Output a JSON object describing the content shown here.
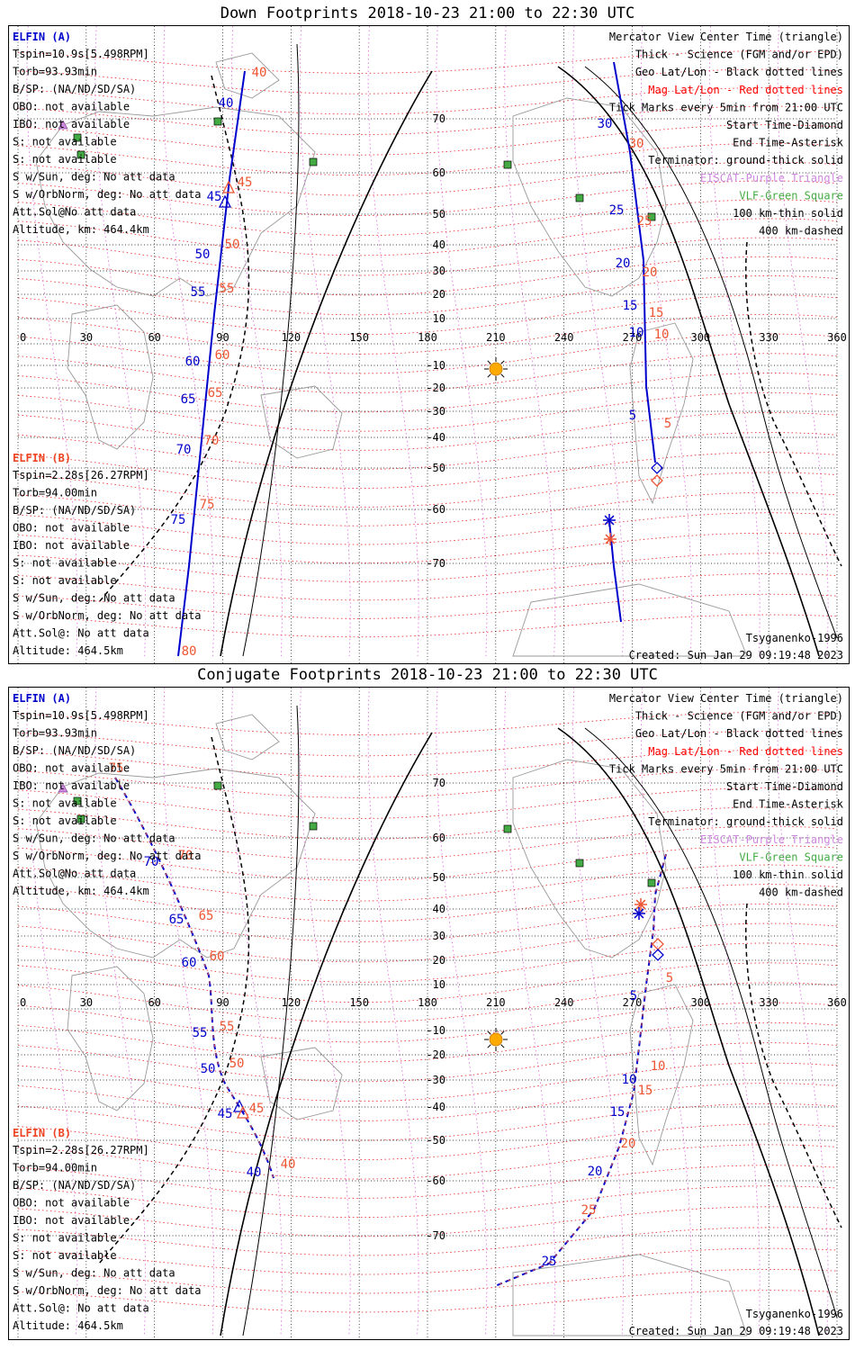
{
  "chart_data": [
    {
      "type": "map",
      "title": "Down Footprints 2018-10-23 21:00 to 22:30 UTC",
      "projection": "Mercator",
      "x_ticks": [
        "0",
        "30",
        "60",
        "90",
        "120",
        "150",
        "180",
        "210",
        "240",
        "270",
        "300",
        "330",
        "360"
      ],
      "y_ticks": [
        "70",
        "60",
        "50",
        "40",
        "30",
        "20",
        "10",
        "-10",
        "-20",
        "-30",
        "-40",
        "-50",
        "-60",
        "-70"
      ],
      "elfin_a": {
        "header": "ELFIN (A)",
        "lines": [
          "Tspin=10.9s[5.498RPM]",
          "Torb=93.93min",
          "B/SP: (NA/ND/SD/SA)",
          "OBO: not available",
          "IBO: not available",
          "S: not available",
          "S: not available",
          "S w/Sun, deg: No att data",
          "S w/OrbNorm, deg: No att data",
          "Att.Sol@No att data",
          "Altitude, km: 464.4km"
        ]
      },
      "elfin_b": {
        "header": "ELFIN (B)",
        "lines": [
          "Tspin=2.28s[26.27RPM]",
          "Torb=94.00min",
          "B/SP: (NA/ND/SD/SA)",
          "OBO: not available",
          "IBO: not available",
          "S: not available",
          "S: not available",
          "S w/Sun, deg: No att data",
          "S w/OrbNorm, deg: No att data",
          "Att.Sol@: No att data",
          "Altitude: 464.5km"
        ]
      },
      "legend": [
        {
          "text": "Mercator View Center Time (triangle)",
          "color": "#000000"
        },
        {
          "text": "Thick - Science (FGM and/or EPD)",
          "color": "#000000"
        },
        {
          "text": "Geo Lat/Lon - Black dotted lines",
          "color": "#000000"
        },
        {
          "text": "Mag Lat/Lon - Red dotted lines",
          "color": "#ff0000"
        },
        {
          "text": "Tick Marks every 5min from 21:00 UTC",
          "color": "#000000"
        },
        {
          "text": "Start Time-Diamond",
          "color": "#000000"
        },
        {
          "text": "End Time-Asterisk",
          "color": "#000000"
        },
        {
          "text": "Terminator: ground-thick solid",
          "color": "#000000"
        },
        {
          "text": "EISCAT-Purple Triangle",
          "color": "#cc88dd"
        },
        {
          "text": "VLF-Green Square",
          "color": "#44aa44"
        },
        {
          "text": "100 km-thin solid",
          "color": "#000000"
        },
        {
          "text": "400 km-dashed",
          "color": "#000000"
        }
      ],
      "footer_model": "Tsyganenko-1996",
      "footer_created": "Created: Sun Jan 29 09:19:48 2023",
      "series": [
        {
          "name": "ELFIN (A)",
          "color": "#0000cc",
          "style": "solid",
          "points": [
            [
              84,
              78
            ],
            [
              82,
              70
            ],
            [
              79,
              63
            ],
            [
              77,
              55
            ],
            [
              76,
              45
            ],
            [
              75,
              38
            ],
            [
              73,
              28
            ],
            [
              71,
              18
            ],
            [
              70,
              8
            ],
            [
              68,
              -5
            ],
            [
              66,
              -18
            ],
            [
              64,
              -30
            ],
            [
              62,
              -45
            ],
            [
              59,
              -58
            ],
            [
              55,
              -70
            ]
          ],
          "tick_labels": [
            "80",
            "75",
            "70",
            "65",
            "60",
            "55",
            "50",
            "45",
            "40"
          ]
        },
        {
          "name": "ELFIN (B)",
          "color": "#ff4422",
          "style": "dashed",
          "points": [
            [
              103,
              80
            ],
            [
              100,
              72
            ],
            [
              97,
              62
            ],
            [
              94,
              52
            ],
            [
              91,
              42
            ],
            [
              87,
              30
            ],
            [
              83,
              18
            ],
            [
              79,
              5
            ],
            [
              75,
              -8
            ],
            [
              70,
              -20
            ],
            [
              64,
              -32
            ],
            [
              57,
              -42
            ],
            [
              49,
              -52
            ],
            [
              40,
              -60
            ],
            [
              30,
              -66
            ]
          ],
          "tick_labels": [
            "40",
            "45",
            "50",
            "55",
            "60",
            "65",
            "70",
            "75",
            "80"
          ]
        },
        {
          "name": "ELFIN (A) south",
          "color": "#0000cc",
          "style": "solid",
          "points": [
            [
              273,
              -72
            ],
            [
              271,
              -62
            ],
            [
              268,
              -50
            ],
            [
              266,
              -40
            ],
            [
              264,
              -30
            ],
            [
              263,
              -20
            ],
            [
              265,
              -10
            ],
            [
              266,
              0
            ],
            [
              265,
              10
            ],
            [
              264,
              20
            ],
            [
              262,
              30
            ],
            [
              260,
              40
            ],
            [
              258,
              50
            ],
            [
              256,
              60
            ],
            [
              254,
              70
            ],
            [
              252,
              80
            ]
          ],
          "tick_labels": [
            "5",
            "10",
            "15",
            "20",
            "25",
            "30"
          ]
        }
      ],
      "tick_values": {
        "a": [
          "80",
          "75",
          "70",
          "65",
          "60",
          "55",
          "50",
          "45",
          "40"
        ],
        "b": [
          "40",
          "45",
          "50",
          "55",
          "60",
          "65",
          "70",
          "75",
          "80"
        ],
        "a2": [
          "5",
          "10",
          "15",
          "20",
          "25",
          "30"
        ],
        "b2": [
          "5",
          "10",
          "15",
          "20",
          "25",
          "30"
        ]
      }
    },
    {
      "type": "map",
      "title": "Conjugate Footprints 2018-10-23 21:00 to 22:30 UTC",
      "projection": "Mercator",
      "x_ticks": [
        "0",
        "30",
        "60",
        "90",
        "120",
        "150",
        "180",
        "210",
        "240",
        "270",
        "300",
        "330",
        "360"
      ],
      "y_ticks": [
        "70",
        "60",
        "50",
        "40",
        "30",
        "20",
        "10",
        "-10",
        "-20",
        "-30",
        "-40",
        "-50",
        "-60",
        "-70"
      ],
      "elfin_a": {
        "header": "ELFIN (A)",
        "lines": [
          "Tspin=10.9s[5.498RPM]",
          "Torb=93.93min",
          "B/SP: (NA/ND/SD/SA)",
          "OBO: not available",
          "IBO: not available",
          "S: not available",
          "S: not available",
          "S w/Sun, deg: No att data",
          "S w/OrbNorm, deg: No att data",
          "Att.Sol@No att data",
          "Altitude, km: 464.4km"
        ]
      },
      "elfin_b": {
        "header": "ELFIN (B)",
        "lines": [
          "Tspin=2.28s[26.27RPM]",
          "Torb=94.00min",
          "B/SP: (NA/ND/SD/SA)",
          "OBO: not available",
          "IBO: not available",
          "S: not available",
          "S: not available",
          "S w/Sun, deg: No att data",
          "S w/OrbNorm, deg: No att data",
          "Att.Sol@: No att data",
          "Altitude: 464.5km"
        ]
      },
      "legend": [
        {
          "text": "Mercator View Center Time (triangle)",
          "color": "#000000"
        },
        {
          "text": "Thick - Science (FGM and/or EPD)",
          "color": "#000000"
        },
        {
          "text": "Geo Lat/Lon - Black dotted lines",
          "color": "#000000"
        },
        {
          "text": "Mag Lat/Lon - Red dotted lines",
          "color": "#ff0000"
        },
        {
          "text": "Tick Marks every 5min from 21:00 UTC",
          "color": "#000000"
        },
        {
          "text": "Start Time-Diamond",
          "color": "#000000"
        },
        {
          "text": "End Time-Asterisk",
          "color": "#000000"
        },
        {
          "text": "Terminator: ground-thick solid",
          "color": "#000000"
        },
        {
          "text": "EISCAT-Purple Triangle",
          "color": "#cc88dd"
        },
        {
          "text": "VLF-Green Square",
          "color": "#44aa44"
        },
        {
          "text": "100 km-thin solid",
          "color": "#000000"
        },
        {
          "text": "400 km-dashed",
          "color": "#000000"
        }
      ],
      "footer_model": "Tsyganenko-1996",
      "footer_created": "Created: Sun Jan 29 09:19:48 2023",
      "tick_values": {
        "a": [
          "75",
          "70",
          "65",
          "60",
          "55",
          "50",
          "45",
          "40"
        ],
        "b": [
          "75",
          "70",
          "65",
          "60",
          "55",
          "50",
          "45",
          "40"
        ],
        "a2": [
          "5",
          "10",
          "15",
          "20",
          "25"
        ],
        "b2": [
          "5",
          "10",
          "15",
          "20",
          "25"
        ]
      }
    }
  ]
}
